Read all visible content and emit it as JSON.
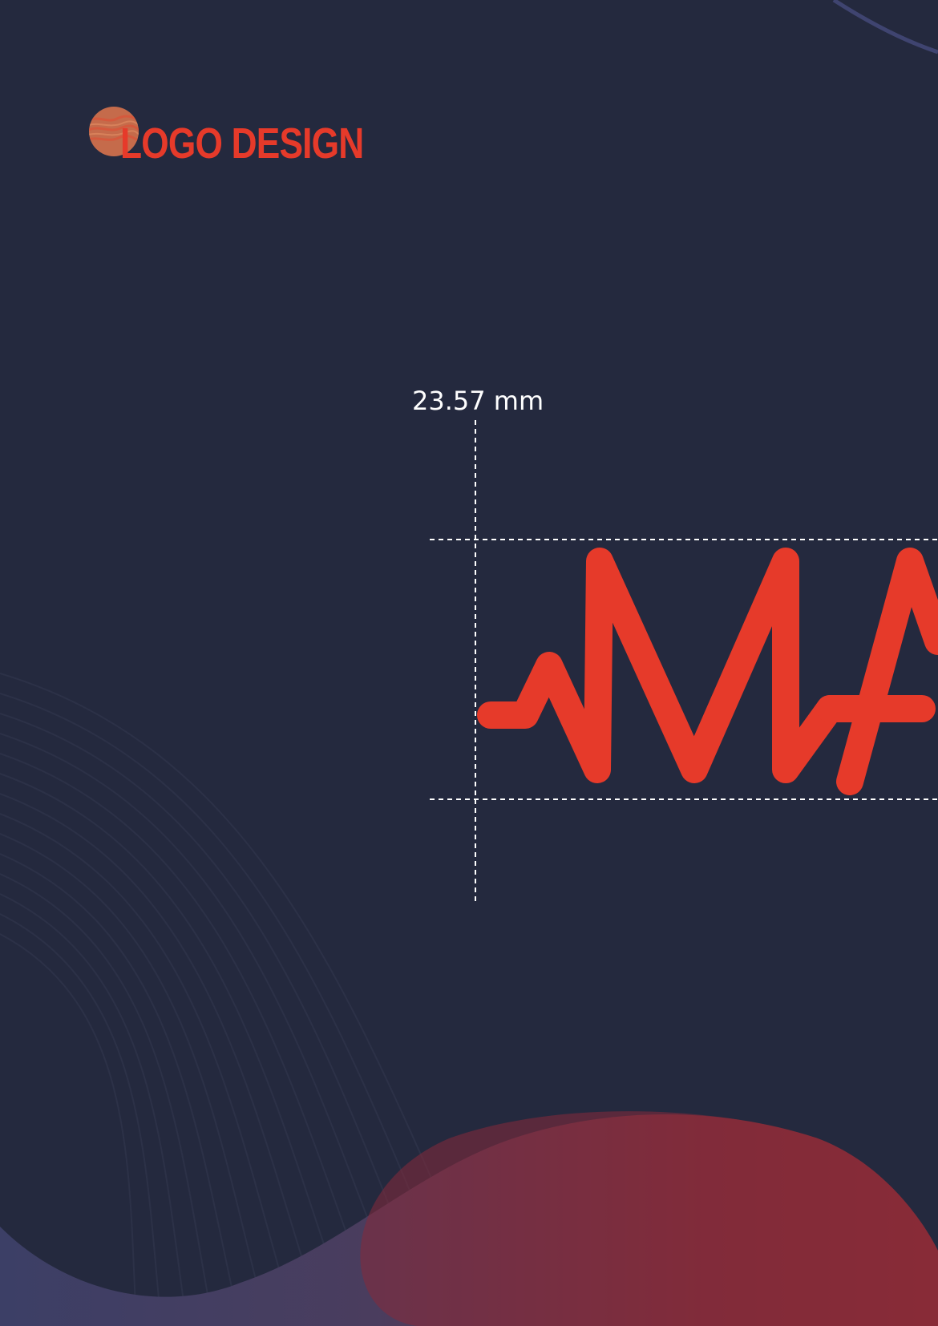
{
  "header": {
    "title": "LOGO DESIGN",
    "planet_icon": "planet-icon"
  },
  "measurement": {
    "label": "23.57 mm"
  },
  "colors": {
    "background": "#24293e",
    "accent": "#e63a2a",
    "guide": "#ffffff",
    "wave_purple": "#3c3f63",
    "wave_red": "#8a2d33",
    "planet": "#c96a4a"
  }
}
